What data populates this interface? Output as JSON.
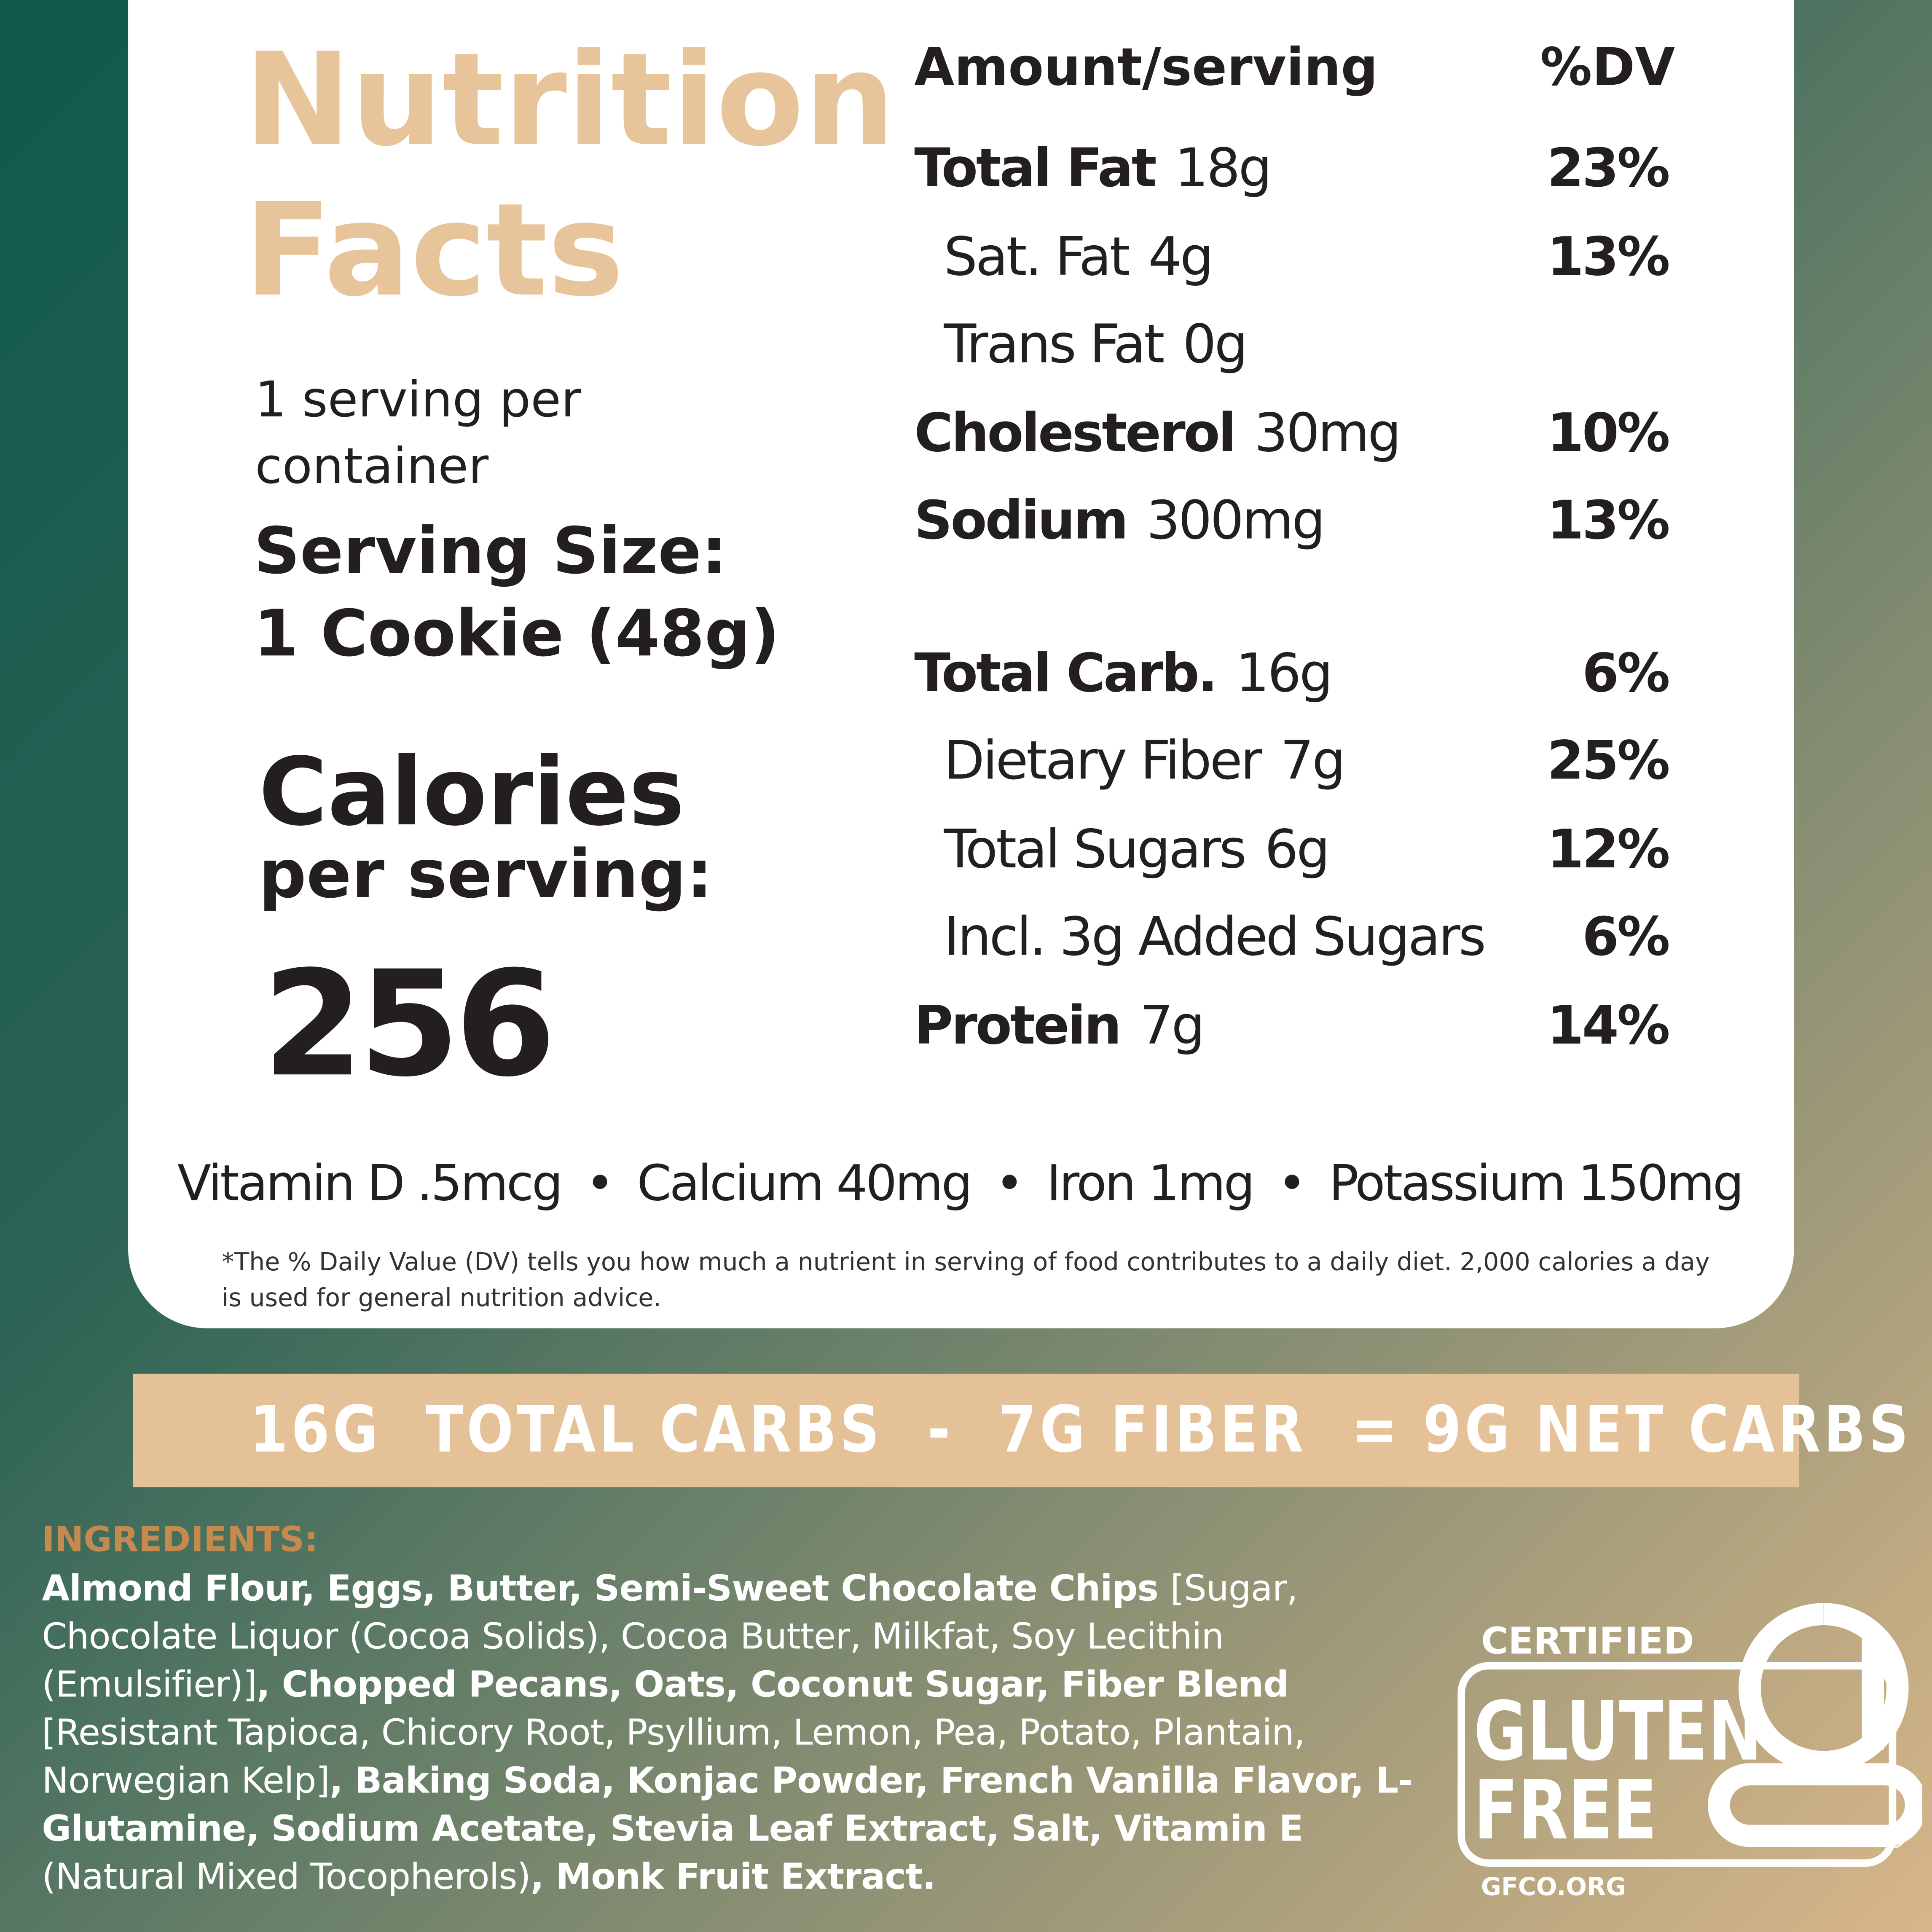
{
  "label": {
    "title": "Nutrition Facts",
    "servings": "1 serving per container",
    "serving_size_label": "Serving Size:",
    "serving_size": "1 Cookie (48g)",
    "calories_label": "Calories",
    "calories_sub": "per serving:",
    "calories": "256",
    "header_amount": "Amount/serving",
    "header_dv": "%DV",
    "nutrient_groups": [
      [
        {
          "name": "Total Fat",
          "amount": "18g",
          "dv": "23%",
          "bold": true
        },
        {
          "name": "Sat. Fat",
          "amount": "4g",
          "dv": "13%",
          "bold": false
        },
        {
          "name": "Trans Fat",
          "amount": "0g",
          "bold": false
        },
        {
          "name": "Cholesterol",
          "amount": "30mg",
          "dv": "10%",
          "bold": true
        },
        {
          "name": "Sodium",
          "amount": "300mg",
          "dv": "13%",
          "bold": true
        }
      ],
      [
        {
          "name": "Total Carb.",
          "amount": "16g",
          "dv": "6%",
          "bold": true
        },
        {
          "name": "Dietary Fiber",
          "amount": "7g",
          "dv": "25%",
          "bold": false
        },
        {
          "name": "Total Sugars",
          "amount": "6g",
          "dv": "12%",
          "bold": false
        },
        {
          "name": "Incl. 3g Added Sugars",
          "dv": "6%",
          "bold": false
        },
        {
          "name": "Protein",
          "amount": "7g",
          "dv": "14%",
          "bold": true
        }
      ]
    ],
    "vitamins": [
      "Vitamin D .5mcg",
      "Calcium 40mg",
      "Iron 1mg",
      "Potassium 150mg"
    ],
    "footnote": "*The % Daily Value (DV) tells you how much a nutrient in serving of food contributes to a daily diet. 2,000 calories a day is used for general nutrition advice."
  },
  "banner": "16G  TOTAL CARBS  -  7G FIBER  = 9G NET CARBS",
  "ingredients": {
    "heading": "INGREDIENTS:",
    "segments": [
      {
        "text": "Almond Flour, Eggs, Butter, Semi-Sweet Chocolate Chips ",
        "bold": true
      },
      {
        "text": "[Sugar, Chocolate Liquor (Cocoa Solids), Cocoa Butter, Milkfat, Soy Lecithin (Emulsifier)]",
        "bold": false
      },
      {
        "text": ", Chopped Pecans, Oats, Coconut Sugar, Fiber Blend ",
        "bold": true
      },
      {
        "text": "[Resistant Tapioca, Chicory Root, Psyllium, Lemon, Pea, Potato, Plantain, Norwegian Kelp]",
        "bold": false
      },
      {
        "text": ", Baking Soda, Konjac Powder, French Vanilla Flavor, L-Glutamine, Sodium Acetate, Stevia Leaf Extract, Salt, Vitamin E ",
        "bold": true
      },
      {
        "text": "(Natural Mixed Tocopherols)",
        "bold": false
      },
      {
        "text": ", Monk Fruit Extract.",
        "bold": true
      }
    ]
  },
  "certification": {
    "top": "CERTIFIED",
    "line1": "GLUTEN",
    "line2": "FREE",
    "site": "GFCO.ORG",
    "mark": "®"
  }
}
